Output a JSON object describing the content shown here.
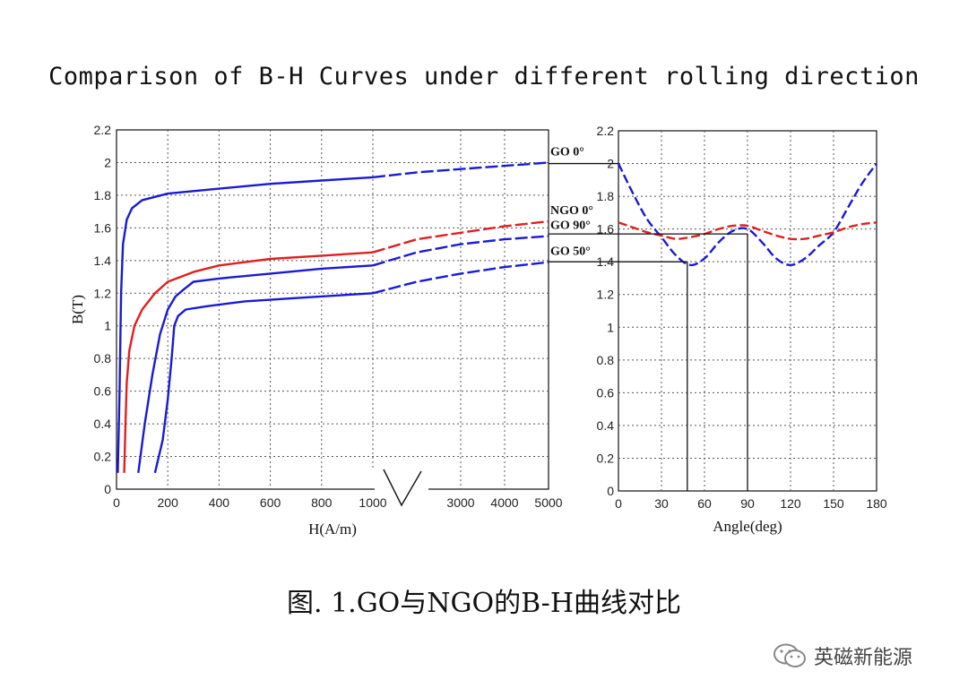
{
  "title": "Comparison of B-H Curves under different rolling direction",
  "caption": "图. 1.GO与NGO的B-H曲线对比",
  "watermark": {
    "text": "英磁新能源",
    "icon": "wechat-icon"
  },
  "colors": {
    "blue": "#1a1ad6",
    "red": "#e02020",
    "grid": "#555555",
    "line": "#111111"
  },
  "chart_data": [
    {
      "type": "line",
      "xlabel": "H(A/m)",
      "ylabel": "B(T)",
      "ylim": [
        0,
        2.2
      ],
      "grid": true,
      "x_axis_broken": true,
      "x_segments": [
        {
          "range": [
            0,
            1000
          ],
          "ticks": [
            "0",
            "200",
            "400",
            "600",
            "800",
            "1000"
          ]
        },
        {
          "range": [
            1000,
            5000
          ],
          "ticks": [
            "3000",
            "4000",
            "5000"
          ]
        }
      ],
      "y_ticks": [
        "0",
        "0.2",
        "0.4",
        "0.6",
        "0.8",
        "1",
        "1.2",
        "1.4",
        "1.6",
        "1.8",
        "2",
        "2.2"
      ],
      "series": [
        {
          "name": "GO 0°",
          "color": "blue",
          "low": {
            "x": [
              5,
              12,
              18,
              25,
              40,
              60,
              100,
              200,
              400,
              600,
              800,
              1000
            ],
            "y": [
              0.1,
              0.6,
              1.2,
              1.5,
              1.65,
              1.72,
              1.77,
              1.81,
              1.84,
              1.87,
              1.89,
              1.91
            ]
          },
          "high": {
            "x": [
              1000,
              2000,
              3000,
              4000,
              5000
            ],
            "y": [
              1.91,
              1.94,
              1.96,
              1.98,
              2.0
            ]
          }
        },
        {
          "name": "NGO 0°",
          "color": "red",
          "low": {
            "x": [
              30,
              35,
              40,
              50,
              70,
              100,
              150,
              200,
              300,
              400,
              600,
              800,
              1000
            ],
            "y": [
              0.1,
              0.4,
              0.65,
              0.85,
              1.0,
              1.1,
              1.2,
              1.27,
              1.33,
              1.37,
              1.41,
              1.43,
              1.45
            ]
          },
          "high": {
            "x": [
              1000,
              2000,
              3000,
              4000,
              5000
            ],
            "y": [
              1.45,
              1.53,
              1.57,
              1.61,
              1.64
            ]
          }
        },
        {
          "name": "GO 90°",
          "color": "blue",
          "low": {
            "x": [
              85,
              110,
              140,
              170,
              200,
              230,
              260,
              300,
              400,
              600,
              800,
              1000
            ],
            "y": [
              0.1,
              0.4,
              0.7,
              0.95,
              1.1,
              1.18,
              1.22,
              1.27,
              1.29,
              1.32,
              1.35,
              1.37
            ]
          },
          "high": {
            "x": [
              1000,
              2000,
              3000,
              4000,
              5000
            ],
            "y": [
              1.37,
              1.45,
              1.5,
              1.53,
              1.55
            ]
          }
        },
        {
          "name": "GO 50°",
          "color": "blue",
          "low": {
            "x": [
              150,
              180,
              200,
              215,
              225,
              240,
              270,
              350,
              500,
              700,
              900,
              1000
            ],
            "y": [
              0.1,
              0.3,
              0.55,
              0.8,
              1.0,
              1.06,
              1.1,
              1.12,
              1.15,
              1.17,
              1.19,
              1.2
            ]
          },
          "high": {
            "x": [
              1000,
              2000,
              3000,
              4000,
              5000
            ],
            "y": [
              1.2,
              1.27,
              1.32,
              1.36,
              1.39
            ]
          }
        }
      ]
    },
    {
      "type": "line",
      "xlabel": "Angle(deg)",
      "ylabel": "",
      "xlim": [
        0,
        180
      ],
      "ylim": [
        0,
        2.2
      ],
      "grid": true,
      "x_ticks": [
        "0",
        "30",
        "60",
        "90",
        "120",
        "150",
        "180"
      ],
      "y_ticks": [
        "0",
        "0.2",
        "0.4",
        "0.6",
        "0.8",
        "1",
        "1.2",
        "1.4",
        "1.6",
        "1.8",
        "2",
        "2.2"
      ],
      "series": [
        {
          "color": "blue",
          "x": [
            0,
            10,
            20,
            30,
            40,
            50,
            60,
            70,
            80,
            90,
            100,
            110,
            120,
            130,
            140,
            150,
            160,
            170,
            180
          ],
          "y": [
            2.0,
            1.82,
            1.66,
            1.55,
            1.44,
            1.38,
            1.42,
            1.52,
            1.59,
            1.6,
            1.52,
            1.42,
            1.38,
            1.42,
            1.5,
            1.58,
            1.73,
            1.88,
            2.0
          ]
        },
        {
          "color": "red",
          "x": [
            0,
            10,
            20,
            30,
            40,
            50,
            60,
            70,
            80,
            90,
            100,
            110,
            120,
            130,
            140,
            150,
            160,
            170,
            180
          ],
          "y": [
            1.64,
            1.61,
            1.58,
            1.56,
            1.54,
            1.55,
            1.57,
            1.6,
            1.62,
            1.62,
            1.59,
            1.56,
            1.54,
            1.54,
            1.56,
            1.58,
            1.61,
            1.63,
            1.64
          ]
        }
      ],
      "reference_lines": [
        {
          "y": 2.0
        },
        {
          "y": 1.57,
          "to_angle": 90
        },
        {
          "y": 1.4,
          "to_angle": 48
        }
      ]
    }
  ]
}
